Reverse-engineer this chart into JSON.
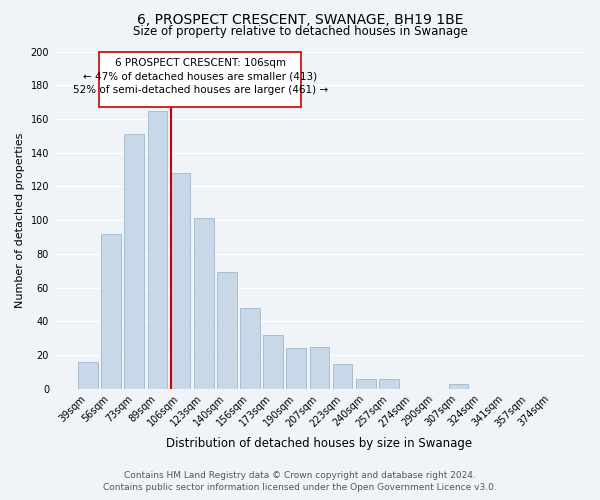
{
  "title": "6, PROSPECT CRESCENT, SWANAGE, BH19 1BE",
  "subtitle": "Size of property relative to detached houses in Swanage",
  "xlabel": "Distribution of detached houses by size in Swanage",
  "ylabel": "Number of detached properties",
  "bar_labels": [
    "39sqm",
    "56sqm",
    "73sqm",
    "89sqm",
    "106sqm",
    "123sqm",
    "140sqm",
    "156sqm",
    "173sqm",
    "190sqm",
    "207sqm",
    "223sqm",
    "240sqm",
    "257sqm",
    "274sqm",
    "290sqm",
    "307sqm",
    "324sqm",
    "341sqm",
    "357sqm",
    "374sqm"
  ],
  "bar_values": [
    16,
    92,
    151,
    165,
    128,
    101,
    69,
    48,
    32,
    24,
    25,
    15,
    6,
    6,
    0,
    0,
    3,
    0,
    0,
    0,
    0
  ],
  "bar_color": "#c8d8e8",
  "bar_edgecolor": "#a0b8cc",
  "highlight_index": 4,
  "vline_color": "#cc0000",
  "ylim": [
    0,
    200
  ],
  "yticks": [
    0,
    20,
    40,
    60,
    80,
    100,
    120,
    140,
    160,
    180,
    200
  ],
  "annotation_title": "6 PROSPECT CRESCENT: 106sqm",
  "annotation_line1": "← 47% of detached houses are smaller (413)",
  "annotation_line2": "52% of semi-detached houses are larger (461) →",
  "annotation_box_facecolor": "#ffffff",
  "annotation_box_edgecolor": "#cc0000",
  "footer_line1": "Contains HM Land Registry data © Crown copyright and database right 2024.",
  "footer_line2": "Contains public sector information licensed under the Open Government Licence v3.0.",
  "bg_color": "#f0f4f8",
  "grid_color": "#ffffff",
  "title_fontsize": 10,
  "subtitle_fontsize": 8.5,
  "xlabel_fontsize": 8.5,
  "ylabel_fontsize": 8,
  "tick_fontsize": 7,
  "annotation_fontsize": 7.5,
  "footer_fontsize": 6.5
}
